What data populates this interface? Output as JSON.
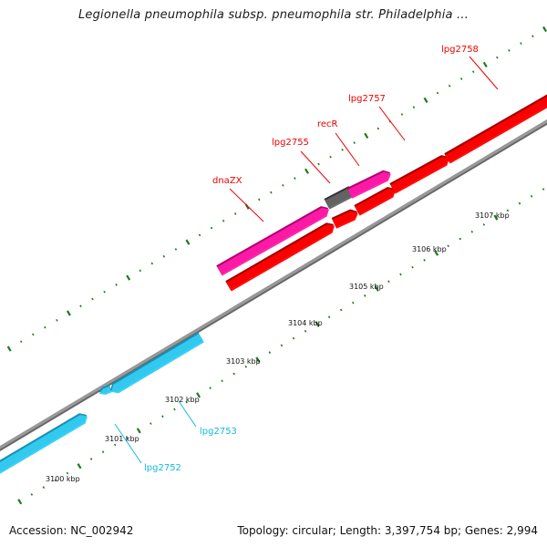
{
  "title": "Legionella pneumophila subsp. pneumophila str. Philadelphia ...",
  "footer": {
    "accession": "Accession: NC_002942",
    "summary": "Topology: circular; Length: 3,397,754 bp; Genes: 2,994"
  },
  "colors": {
    "backbone": "#999999",
    "backbone_edge": "#666666",
    "tick": "#1f7a1f",
    "gene_forward_pink": "#ff1aa8",
    "gene_reverse_red": "#ff0000",
    "gene_cyan": "#33ccf2",
    "gene_gray": "#666666",
    "label_red": "#ee0000",
    "label_cyan": "#11bbdd"
  },
  "scale_labels": [
    {
      "text": "3100 kbp",
      "kbp": 3100
    },
    {
      "text": "3101 kbp",
      "kbp": 3101
    },
    {
      "text": "3102 kbp",
      "kbp": 3102
    },
    {
      "text": "3103 kbp",
      "kbp": 3103
    },
    {
      "text": "3104 kbp",
      "kbp": 3104
    },
    {
      "text": "3105 kbp",
      "kbp": 3105
    },
    {
      "text": "3106 kbp",
      "kbp": 3106
    },
    {
      "text": "3107 kbp",
      "kbp": 3107
    }
  ],
  "genes": [
    {
      "name": "lpg2752",
      "label": "lpg2752",
      "strand": "forward",
      "color": "gene_cyan"
    },
    {
      "name": "lpg2753",
      "label": "lpg2753",
      "strand": "forward",
      "color": "gene_cyan"
    },
    {
      "name": "dnaZX",
      "label": "dnaZX",
      "strand": "forward",
      "color": "gene_forward_pink"
    },
    {
      "name": "lpg2755",
      "label": "lpg2755",
      "strand": "reverse",
      "color": "gene_reverse_red"
    },
    {
      "name": "recR",
      "label": "recR",
      "strand": "forward",
      "color": "gene_gray"
    },
    {
      "name": "lpg2757",
      "label": "lpg2757",
      "strand": "reverse",
      "color": "gene_reverse_red"
    },
    {
      "name": "lpg2758",
      "label": "lpg2758",
      "strand": "reverse",
      "color": "gene_reverse_red"
    }
  ]
}
